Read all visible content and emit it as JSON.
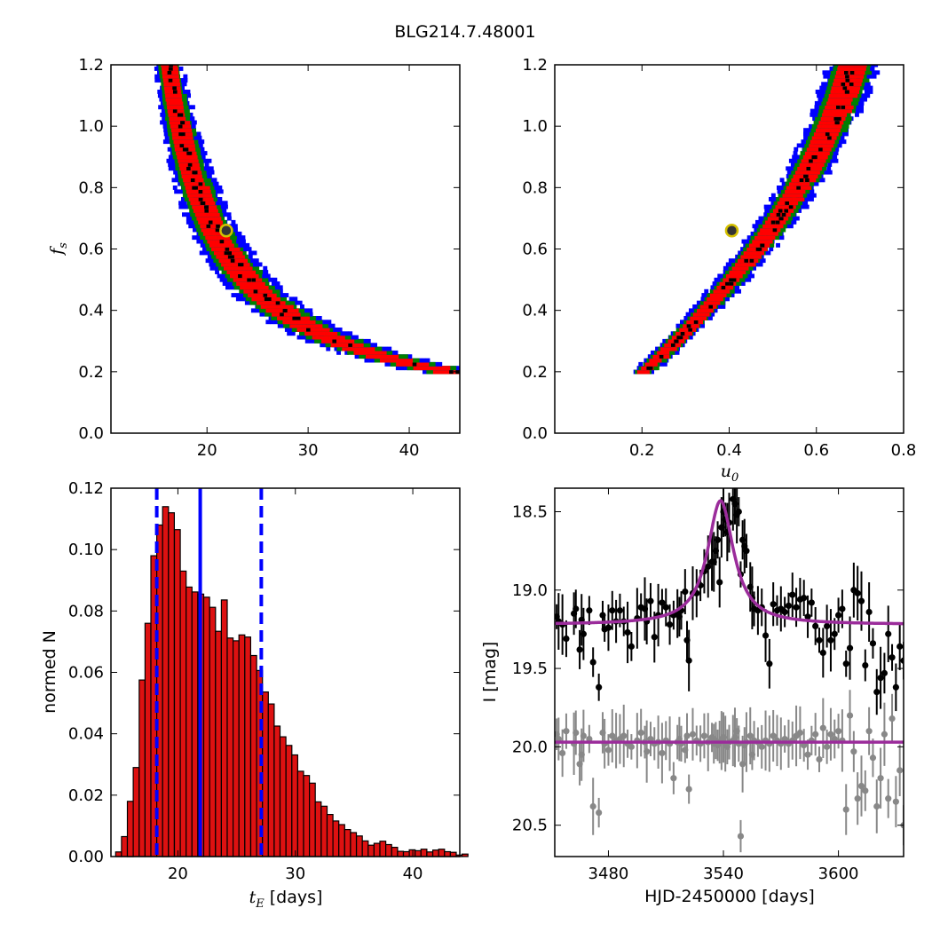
{
  "title": "BLG214.7.48001",
  "colors": {
    "level1": "#0000ff",
    "level2": "#008000",
    "level3": "#ff0000",
    "core": "#000000",
    "marker_edge": "#d4c000",
    "hist_fill": "#dd1111",
    "vline": "#0000ff",
    "model": "#9b2c9b",
    "data_black": "#000000",
    "data_gray": "#888888"
  },
  "chart_data": [
    {
      "id": "tE_vs_fs",
      "type": "heatmap",
      "xlabel": "",
      "ylabel": "f_s",
      "xlim": [
        10.5,
        45
      ],
      "ylim": [
        0.0,
        1.2
      ],
      "xticks": [
        "20",
        "30",
        "40"
      ],
      "yticks": [
        "0.0",
        "0.2",
        "0.4",
        "0.6",
        "0.8",
        "1.0",
        "1.2"
      ],
      "ridge": {
        "model": "tE = 10.5 + 6.7 / fs",
        "fs_range": [
          0.2,
          1.2
        ]
      },
      "best_fit": {
        "x": 21.9,
        "y": 0.66
      }
    },
    {
      "id": "u0_vs_fs",
      "type": "heatmap",
      "xlabel": "u_0",
      "ylabel": "",
      "xlim": [
        0.0,
        0.8
      ],
      "ylim": [
        0.0,
        1.2
      ],
      "xticks": [
        "0.2",
        "0.4",
        "0.6",
        "0.8"
      ],
      "yticks": [
        "0.0",
        "0.2",
        "0.4",
        "0.6",
        "0.8",
        "1.0",
        "1.2"
      ],
      "ridge": {
        "model": "u0 = 0.04 + 0.865 * fs - 0.276 * fs^2",
        "fs_range": [
          0.2,
          1.2
        ]
      },
      "best_fit": {
        "x": 0.406,
        "y": 0.66
      }
    },
    {
      "id": "tE_hist",
      "type": "bar",
      "xlabel": "t_E [days]",
      "ylabel": "normed N",
      "xlim": [
        14.3,
        44.0
      ],
      "ylim": [
        0.0,
        0.12
      ],
      "xticks": [
        "20",
        "30",
        "40"
      ],
      "yticks": [
        "0.00",
        "0.02",
        "0.04",
        "0.06",
        "0.08",
        "0.10",
        "0.12"
      ],
      "bin_start": 14.7,
      "bin_width": 0.5,
      "values": [
        0.0015,
        0.0065,
        0.018,
        0.029,
        0.0575,
        0.076,
        0.098,
        0.108,
        0.114,
        0.112,
        0.1065,
        0.093,
        0.0878,
        0.0862,
        0.0855,
        0.0845,
        0.0812,
        0.0734,
        0.0836,
        0.0712,
        0.0703,
        0.0722,
        0.0715,
        0.0655,
        0.0606,
        0.0536,
        0.0497,
        0.0425,
        0.039,
        0.0362,
        0.0331,
        0.0278,
        0.0264,
        0.0239,
        0.0178,
        0.0164,
        0.0137,
        0.0116,
        0.0104,
        0.0088,
        0.0078,
        0.0067,
        0.0051,
        0.0037,
        0.0043,
        0.005,
        0.0039,
        0.003,
        0.0017,
        0.0016,
        0.0022,
        0.0019,
        0.0024,
        0.0015,
        0.0021,
        0.0024,
        0.0016,
        0.0014,
        0.0005,
        0.0008
      ],
      "vlines": {
        "median": 21.9,
        "lower": 18.2,
        "upper": 27.1
      }
    },
    {
      "id": "light_curve",
      "type": "scatter",
      "xlabel": "HJD-2450000 [days]",
      "ylabel": "I [mag]",
      "xlim": [
        3452,
        3634
      ],
      "ylim": [
        20.7,
        18.35
      ],
      "xticks": [
        "3480",
        "3540",
        "3600"
      ],
      "yticks": [
        "18.5",
        "19.0",
        "19.5",
        "20.0",
        "20.5"
      ],
      "model": {
        "t0": 3538.5,
        "base": 19.22,
        "peak": 18.43,
        "width": 8.3
      },
      "residual_level": 19.97,
      "series": [
        {
          "x": [
            3453,
            3454,
            3456,
            3458,
            3462,
            3463,
            3465,
            3466,
            3467,
            3470,
            3472,
            3475,
            3477,
            3478,
            3480,
            3482,
            3484,
            3486,
            3488,
            3490,
            3492,
            3495,
            3497,
            3499,
            3500,
            3502,
            3504,
            3506,
            3508,
            3510,
            3512,
            3514,
            3516,
            3517,
            3518,
            3520,
            3521,
            3522,
            3524,
            3526,
            3528,
            3530,
            3532,
            3534,
            3535,
            3536,
            3537,
            3538,
            3539,
            3540,
            3541,
            3542,
            3543,
            3545,
            3546,
            3547,
            3548,
            3549,
            3550,
            3551,
            3552,
            3554,
            3555,
            3556,
            3558,
            3560,
            3562,
            3564,
            3566,
            3568,
            3570,
            3572,
            3574,
            3576,
            3578,
            3580,
            3582,
            3584,
            3586,
            3588,
            3590,
            3592,
            3594,
            3596,
            3598,
            3600,
            3602,
            3604,
            3606,
            3608,
            3610,
            3612,
            3614,
            3616,
            3618,
            3620,
            3622,
            3624,
            3626,
            3628,
            3630,
            3632,
            3634
          ],
          "y": [
            19.17,
            19.2,
            19.22,
            19.31,
            19.15,
            19.12,
            19.38,
            19.19,
            19.28,
            19.13,
            19.46,
            19.62,
            19.16,
            19.25,
            19.24,
            19.13,
            19.2,
            19.13,
            19.2,
            19.27,
            19.36,
            19.18,
            19.11,
            19.12,
            19.2,
            19.07,
            19.3,
            19.16,
            19.08,
            19.11,
            19.22,
            19.16,
            19.15,
            19.17,
            19.13,
            19.01,
            19.32,
            19.45,
            19.02,
            19.02,
            18.97,
            18.88,
            18.85,
            18.82,
            18.82,
            18.75,
            18.68,
            18.95,
            18.6,
            18.5,
            18.55,
            18.63,
            18.57,
            18.42,
            18.45,
            18.52,
            18.5,
            18.9,
            18.68,
            18.72,
            18.75,
            18.98,
            19.05,
            19.12,
            19.13,
            19.11,
            19.29,
            19.47,
            19.09,
            19.13,
            19.12,
            19.14,
            19.1,
            19.03,
            19.11,
            19.06,
            19.05,
            19.17,
            19.08,
            19.23,
            19.32,
            19.4,
            19.23,
            19.32,
            19.28,
            19.16,
            19.12,
            19.47,
            19.37,
            19.0,
            19.02,
            19.07,
            19.48,
            19.14,
            19.34,
            19.65,
            19.56,
            19.53,
            19.28,
            19.43,
            19.62,
            19.36,
            19.45
          ]
        },
        {
          "x": [
            3453,
            3454,
            3456,
            3458,
            3462,
            3463,
            3465,
            3466,
            3467,
            3470,
            3472,
            3475,
            3477,
            3478,
            3480,
            3482,
            3484,
            3486,
            3488,
            3490,
            3492,
            3495,
            3497,
            3499,
            3500,
            3502,
            3504,
            3506,
            3508,
            3510,
            3512,
            3514,
            3516,
            3517,
            3518,
            3520,
            3521,
            3522,
            3524,
            3526,
            3528,
            3530,
            3532,
            3534,
            3535,
            3536,
            3537,
            3538,
            3539,
            3540,
            3541,
            3542,
            3543,
            3545,
            3546,
            3547,
            3548,
            3549,
            3550,
            3551,
            3552,
            3554,
            3555,
            3556,
            3558,
            3560,
            3562,
            3564,
            3566,
            3568,
            3570,
            3572,
            3574,
            3576,
            3578,
            3580,
            3582,
            3584,
            3586,
            3588,
            3590,
            3592,
            3594,
            3596,
            3598,
            3600,
            3602,
            3604,
            3606,
            3608,
            3610,
            3612,
            3614,
            3616,
            3618,
            3620,
            3622,
            3624,
            3626,
            3628,
            3630,
            3632,
            3634
          ],
          "y": [
            19.92,
            19.95,
            20.04,
            19.9,
            19.98,
            19.91,
            20.11,
            20.05,
            19.93,
            19.95,
            20.38,
            20.42,
            19.91,
            19.98,
            20.02,
            19.93,
            19.96,
            19.95,
            19.93,
            19.98,
            20.0,
            19.96,
            19.91,
            19.97,
            20.03,
            19.95,
            19.98,
            19.97,
            20.04,
            19.96,
            19.98,
            20.2,
            19.97,
            19.95,
            19.98,
            20.02,
            19.93,
            20.27,
            19.92,
            19.96,
            19.98,
            19.93,
            19.97,
            19.94,
            19.98,
            19.96,
            19.99,
            19.97,
            19.96,
            19.94,
            19.98,
            20.0,
            19.97,
            19.96,
            19.94,
            19.9,
            19.98,
            20.57,
            20.11,
            19.99,
            19.97,
            19.93,
            20.05,
            19.96,
            19.97,
            20.0,
            19.96,
            19.98,
            19.93,
            19.96,
            19.98,
            19.95,
            19.98,
            19.96,
            19.93,
            19.91,
            19.99,
            20.05,
            19.96,
            19.92,
            20.08,
            19.88,
            20.0,
            19.92,
            19.95,
            19.9,
            19.96,
            20.4,
            19.8,
            20.03,
            20.33,
            20.25,
            20.28,
            19.9,
            20.07,
            20.38,
            20.2,
            19.92,
            20.33,
            19.82,
            20.35,
            20.15,
            20.5
          ]
        }
      ]
    }
  ]
}
